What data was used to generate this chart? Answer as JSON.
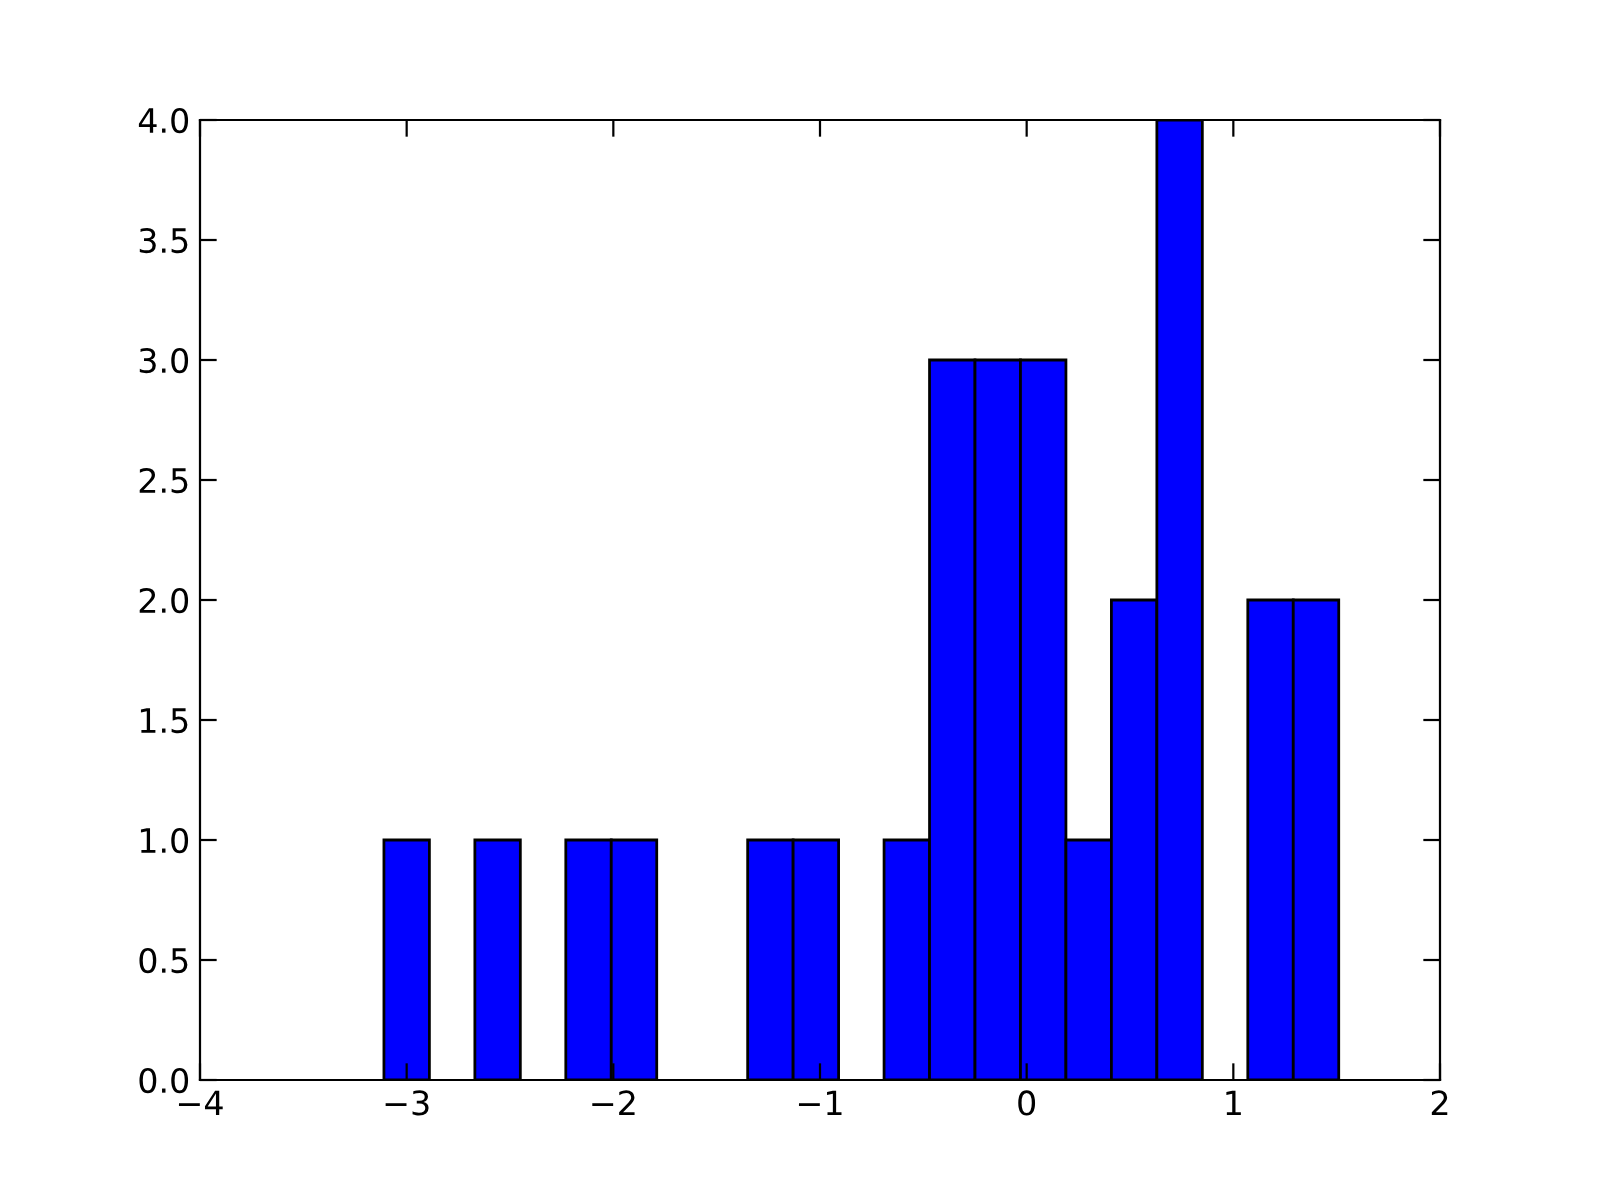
{
  "chart_data": {
    "type": "histogram",
    "bins": [
      -3.11,
      -2.89,
      -2.67,
      -2.45,
      -2.23,
      -2.01,
      -1.79,
      -1.57,
      -1.35,
      -1.13,
      -0.91,
      -0.69,
      -0.47,
      -0.25,
      -0.03,
      0.19,
      0.41,
      0.63,
      0.85,
      1.07,
      1.29,
      1.51
    ],
    "values": [
      1,
      0,
      1,
      0,
      1,
      1,
      0,
      0,
      1,
      1,
      0,
      1,
      3,
      3,
      3,
      1,
      2,
      4,
      0,
      2,
      2
    ],
    "color": "#0000ff",
    "xlim": [
      -4,
      2
    ],
    "xticks": [
      {
        "value": -4,
        "label": "−4"
      },
      {
        "value": -3,
        "label": "−3"
      },
      {
        "value": -2,
        "label": "−2"
      },
      {
        "value": -1,
        "label": "−1"
      },
      {
        "value": 0,
        "label": "0"
      },
      {
        "value": 1,
        "label": "1"
      },
      {
        "value": 2,
        "label": "2"
      }
    ],
    "ylim": [
      0,
      4
    ],
    "yticks": [
      {
        "value": 0,
        "label": "0.0"
      },
      0.5,
      {
        "value": 1,
        "label": "1.0"
      },
      1.5,
      {
        "value": 2,
        "label": "2.0"
      },
      2.5,
      {
        "value": 3,
        "label": "3.0"
      },
      3.5,
      {
        "value": 4,
        "label": "4.0"
      }
    ],
    "grid": false
  }
}
